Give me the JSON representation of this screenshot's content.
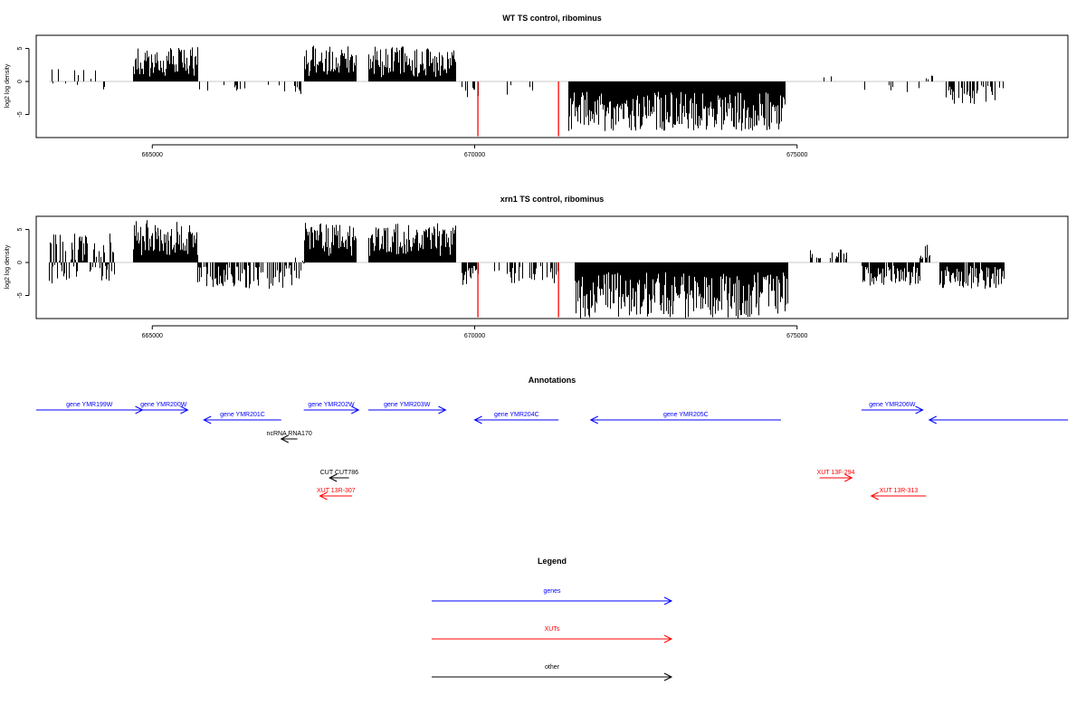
{
  "chart_data": [
    {
      "type": "bar",
      "title": "WT TS control, ribominus",
      "ylabel": "log2 log density",
      "xlabel": "",
      "xlim": [
        663200,
        679200
      ],
      "ylim": [
        -8.5,
        7
      ],
      "yticks": [
        -5,
        0,
        5
      ],
      "xticks": [
        665000,
        670000,
        675000
      ],
      "xtick_labels": [
        "665000",
        "670000",
        "675000"
      ],
      "highlights": [
        {
          "x": 670050,
          "y": -8.3,
          "color": "#ff0000"
        },
        {
          "x": 671300,
          "y": -8.3,
          "color": "#ff0000"
        }
      ],
      "segments": [
        {
          "from": 663400,
          "to": 664400,
          "density": 0.18,
          "min": -1.2,
          "max": 3.0,
          "seed": 11
        },
        {
          "from": 664700,
          "to": 665700,
          "density": 1.0,
          "min": 0.6,
          "max": 5.2,
          "seed": 12
        },
        {
          "from": 665700,
          "to": 667200,
          "density": 0.12,
          "min": -1.6,
          "max": -0.4,
          "seed": 13
        },
        {
          "from": 667200,
          "to": 667300,
          "density": 0.5,
          "min": -2.0,
          "max": 0.4,
          "seed": 14
        },
        {
          "from": 667350,
          "to": 668150,
          "density": 1.0,
          "min": 0.8,
          "max": 5.5,
          "seed": 15
        },
        {
          "from": 668350,
          "to": 669700,
          "density": 1.0,
          "min": 0.6,
          "max": 5.4,
          "seed": 16
        },
        {
          "from": 669800,
          "to": 670050,
          "density": 0.25,
          "min": -2.5,
          "max": -0.5,
          "seed": 17
        },
        {
          "from": 670300,
          "to": 671000,
          "density": 0.05,
          "min": -2.5,
          "max": -0.5,
          "seed": 18
        },
        {
          "from": 671450,
          "to": 674800,
          "density": 1.0,
          "min": -7.5,
          "max": -1.5,
          "seed": 19
        },
        {
          "from": 675200,
          "to": 675600,
          "density": 0.1,
          "min": 0.5,
          "max": 1.5,
          "seed": 20
        },
        {
          "from": 675900,
          "to": 676900,
          "density": 0.12,
          "min": -1.8,
          "max": -0.3,
          "seed": 21
        },
        {
          "from": 677000,
          "to": 677100,
          "density": 0.4,
          "min": 0.3,
          "max": 1.0,
          "seed": 22
        },
        {
          "from": 677300,
          "to": 678200,
          "density": 0.35,
          "min": -3.5,
          "max": -0.5,
          "seed": 23
        }
      ]
    },
    {
      "type": "bar",
      "title": "xrn1 TS control, ribominus",
      "ylabel": "log2 log density",
      "xlabel": "",
      "xlim": [
        663200,
        679200
      ],
      "ylim": [
        -8.5,
        7
      ],
      "yticks": [
        -5,
        0,
        5
      ],
      "xticks": [
        665000,
        670000,
        675000
      ],
      "xtick_labels": [
        "665000",
        "670000",
        "675000"
      ],
      "highlights": [
        {
          "x": 670050,
          "y": -8.3,
          "color": "#ff0000"
        },
        {
          "x": 671300,
          "y": -8.3,
          "color": "#ff0000"
        }
      ],
      "segments": [
        {
          "from": 663400,
          "to": 664400,
          "density": 0.9,
          "min": -3.5,
          "max": 4.5,
          "seed": 31
        },
        {
          "from": 664700,
          "to": 665700,
          "density": 1.0,
          "min": 1.0,
          "max": 6.5,
          "seed": 32
        },
        {
          "from": 665700,
          "to": 667200,
          "density": 0.7,
          "min": -4.0,
          "max": -0.3,
          "seed": 33
        },
        {
          "from": 667200,
          "to": 667350,
          "density": 0.8,
          "min": -2.5,
          "max": 1.0,
          "seed": 34
        },
        {
          "from": 667350,
          "to": 668150,
          "density": 1.0,
          "min": 1.0,
          "max": 6.2,
          "seed": 35
        },
        {
          "from": 668350,
          "to": 669700,
          "density": 1.0,
          "min": 1.0,
          "max": 6.0,
          "seed": 36
        },
        {
          "from": 669800,
          "to": 670050,
          "density": 0.6,
          "min": -3.5,
          "max": -0.5,
          "seed": 37
        },
        {
          "from": 670300,
          "to": 671300,
          "density": 0.4,
          "min": -3.5,
          "max": -0.5,
          "seed": 38
        },
        {
          "from": 671550,
          "to": 674850,
          "density": 1.0,
          "min": -8.5,
          "max": -1.5,
          "seed": 39
        },
        {
          "from": 675200,
          "to": 675800,
          "density": 0.4,
          "min": 0.5,
          "max": 2.0,
          "seed": 40
        },
        {
          "from": 676000,
          "to": 676900,
          "density": 0.9,
          "min": -3.5,
          "max": -0.5,
          "seed": 41
        },
        {
          "from": 676900,
          "to": 677050,
          "density": 0.8,
          "min": 0.5,
          "max": 2.8,
          "seed": 42
        },
        {
          "from": 677200,
          "to": 678200,
          "density": 0.9,
          "min": -4.0,
          "max": -0.5,
          "seed": 43
        }
      ]
    }
  ],
  "annotations": {
    "title": "Annotations",
    "features": [
      {
        "label": "gene YMR199W",
        "from": 663200,
        "to": 664850,
        "strand": "+",
        "row": 0,
        "color": "#0000ff"
      },
      {
        "label": "gene YMR200W",
        "from": 664800,
        "to": 665550,
        "strand": "+",
        "row": 0,
        "color": "#0000ff"
      },
      {
        "label": "gene YMR201C",
        "from": 665800,
        "to": 667000,
        "strand": "-",
        "row": 1,
        "color": "#0000ff"
      },
      {
        "label": "gene YMR202W",
        "from": 667350,
        "to": 668200,
        "strand": "+",
        "row": 0,
        "color": "#0000ff"
      },
      {
        "label": "gene YMR203W",
        "from": 668350,
        "to": 669550,
        "strand": "+",
        "row": 0,
        "color": "#0000ff"
      },
      {
        "label": "gene YMR204C",
        "from": 670000,
        "to": 671300,
        "strand": "-",
        "row": 1,
        "color": "#0000ff"
      },
      {
        "label": "gene YMR205C",
        "from": 671800,
        "to": 674750,
        "strand": "-",
        "row": 1,
        "color": "#0000ff"
      },
      {
        "label": "gene YMR206W",
        "from": 676000,
        "to": 676950,
        "strand": "+",
        "row": 0,
        "color": "#0000ff"
      },
      {
        "label": "",
        "from": 677050,
        "to": 679200,
        "strand": "-",
        "row": 1,
        "color": "#0000ff"
      },
      {
        "label": "ncRNA RNA170",
        "from": 667000,
        "to": 667250,
        "strand": "-",
        "row": 2,
        "color": "#000000"
      },
      {
        "label": "CUT CUT786",
        "from": 667750,
        "to": 668050,
        "strand": "-",
        "row": 3,
        "color": "#000000"
      },
      {
        "label": "XUT 13R-307",
        "from": 667600,
        "to": 668100,
        "strand": "-",
        "row": 4,
        "color": "#ff0000"
      },
      {
        "label": "XUT 13F-294",
        "from": 675350,
        "to": 675850,
        "strand": "+",
        "row": 3,
        "color": "#ff0000"
      },
      {
        "label": "XUT 13R-313",
        "from": 676150,
        "to": 677000,
        "strand": "-",
        "row": 4,
        "color": "#ff0000"
      }
    ]
  },
  "legend": {
    "title": "Legend",
    "items": [
      {
        "label": "genes",
        "color": "#0000ff"
      },
      {
        "label": "XUTs",
        "color": "#ff0000"
      },
      {
        "label": "other",
        "color": "#000000"
      }
    ]
  }
}
